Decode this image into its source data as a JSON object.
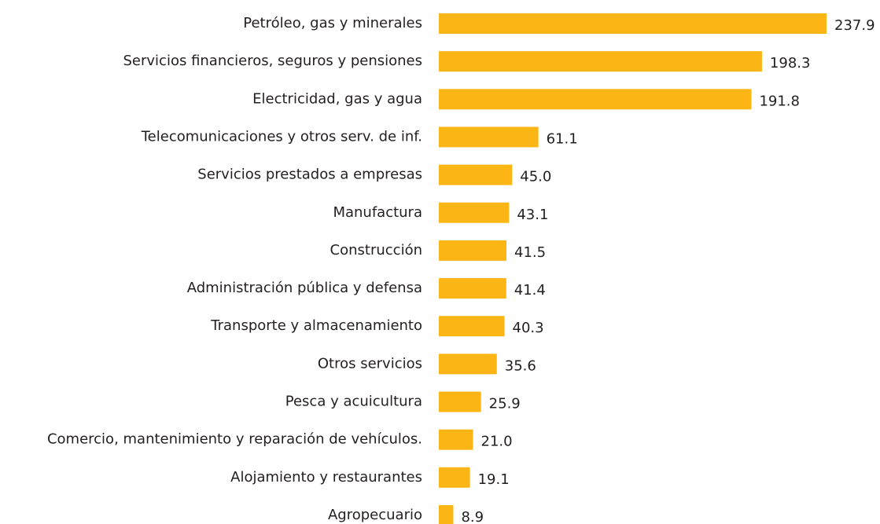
{
  "chart_data": {
    "type": "bar",
    "orientation": "horizontal",
    "color": "#fbb616",
    "categories": [
      "Petróleo, gas y minerales",
      "Servicios financieros, seguros y pensiones",
      "Electricidad, gas y agua",
      "Telecomunicaciones y otros serv. de inf.",
      "Servicios prestados a empresas",
      "Manufactura",
      "Construcción",
      "Administración pública y defensa",
      "Transporte y almacenamiento",
      "Otros servicios",
      "Pesca y acuicultura",
      "Comercio, mantenimiento y reparación de vehículos.",
      "Alojamiento y restaurantes",
      "Agropecuario"
    ],
    "values": [
      237.9,
      198.3,
      191.8,
      61.1,
      45,
      43.1,
      41.5,
      41.4,
      40.3,
      35.6,
      25.9,
      21,
      19.1,
      8.9
    ],
    "value_labels": [
      "237.9",
      "198.3",
      "191.8",
      "61.1",
      "45.0",
      "43.1",
      "41.5",
      "41.4",
      "40.3",
      "35.6",
      "25.9",
      "21.0",
      "19.1",
      "8.9"
    ]
  }
}
